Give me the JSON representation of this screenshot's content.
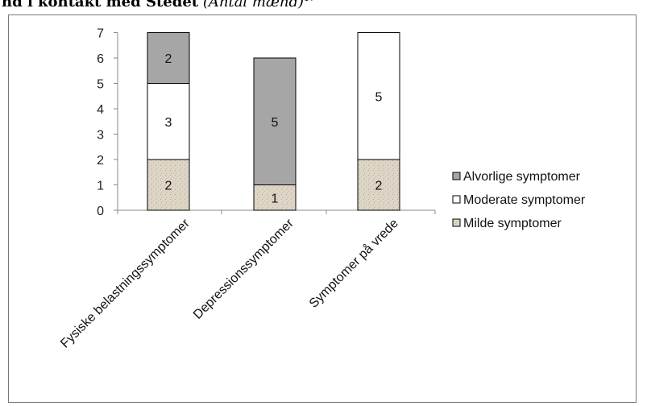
{
  "header": {
    "title_bold": "nd i kontakt med Stedet",
    "title_italic": "(Antal mænd)",
    "title_sup": "17"
  },
  "chart_data": {
    "type": "bar",
    "stacked": true,
    "categories": [
      "Fysiske belastningssymptomer",
      "Depressionssymptomer",
      "Symptomer på vrede"
    ],
    "series": [
      {
        "name": "Milde symptomer",
        "values": [
          2,
          1,
          2
        ],
        "color": "#ddd5c6"
      },
      {
        "name": "Moderate symptomer",
        "values": [
          3,
          0,
          5
        ],
        "color": "#ffffff"
      },
      {
        "name": "Alvorlige symptomer",
        "values": [
          2,
          5,
          0
        ],
        "color": "#a6a6a6"
      }
    ],
    "ylim": [
      0,
      7
    ],
    "yticks": [
      0,
      1,
      2,
      3,
      4,
      5,
      6,
      7
    ],
    "grid": false,
    "legend_position": "right",
    "legend_order": [
      "Alvorlige symptomer",
      "Moderate symptomer",
      "Milde symptomer"
    ],
    "data_labels": true
  }
}
